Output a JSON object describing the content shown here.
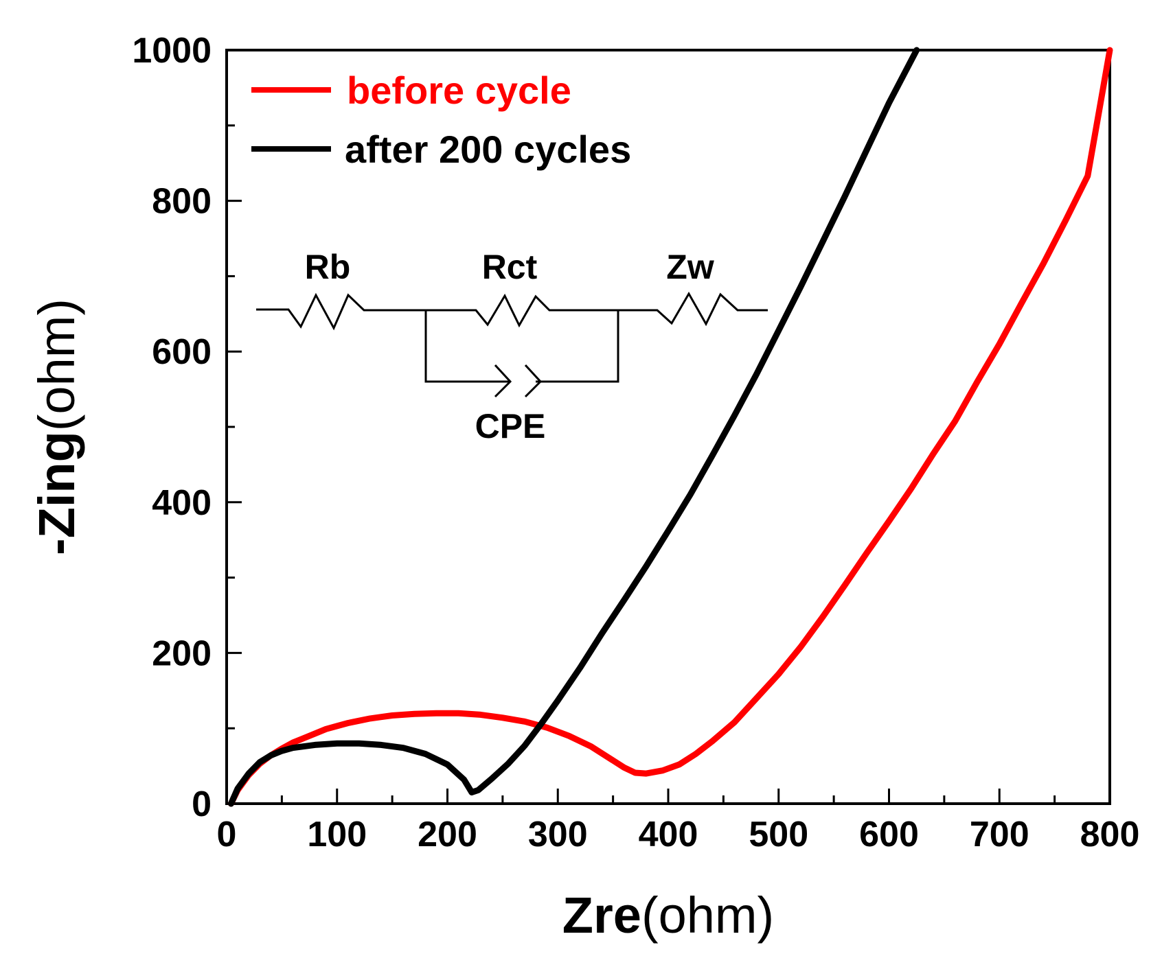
{
  "chart_data": {
    "type": "line",
    "x_axis": {
      "label_bold": "Zre",
      "label_unit": "(ohm)",
      "range": [
        0,
        800
      ],
      "ticks": [
        0,
        100,
        200,
        300,
        400,
        500,
        600,
        700,
        800
      ]
    },
    "y_axis": {
      "label_bold": "-Zing",
      "label_unit": "(ohm)",
      "range": [
        0,
        1000
      ],
      "ticks": [
        0,
        200,
        400,
        600,
        800,
        1000
      ]
    },
    "legend_position": "top-left",
    "series": [
      {
        "name": "before cycle",
        "color": "#ff0000",
        "points": [
          [
            4,
            0
          ],
          [
            10,
            18
          ],
          [
            20,
            38
          ],
          [
            30,
            53
          ],
          [
            40,
            64
          ],
          [
            50,
            73
          ],
          [
            60,
            81
          ],
          [
            70,
            87
          ],
          [
            80,
            93
          ],
          [
            90,
            99
          ],
          [
            100,
            103
          ],
          [
            110,
            107
          ],
          [
            120,
            110
          ],
          [
            130,
            113
          ],
          [
            140,
            115
          ],
          [
            150,
            117
          ],
          [
            170,
            119
          ],
          [
            190,
            120
          ],
          [
            210,
            120
          ],
          [
            230,
            118
          ],
          [
            250,
            114
          ],
          [
            270,
            109
          ],
          [
            290,
            101
          ],
          [
            310,
            90
          ],
          [
            330,
            76
          ],
          [
            345,
            62
          ],
          [
            360,
            48
          ],
          [
            370,
            41
          ],
          [
            380,
            40
          ],
          [
            395,
            44
          ],
          [
            410,
            52
          ],
          [
            425,
            66
          ],
          [
            440,
            83
          ],
          [
            460,
            108
          ],
          [
            480,
            140
          ],
          [
            500,
            172
          ],
          [
            520,
            208
          ],
          [
            540,
            248
          ],
          [
            560,
            290
          ],
          [
            580,
            333
          ],
          [
            600,
            375
          ],
          [
            620,
            418
          ],
          [
            640,
            464
          ],
          [
            660,
            508
          ],
          [
            680,
            560
          ],
          [
            700,
            610
          ],
          [
            720,
            664
          ],
          [
            740,
            717
          ],
          [
            760,
            774
          ],
          [
            780,
            833
          ],
          [
            800,
            1000
          ]
        ]
      },
      {
        "name": "after 200 cycles",
        "color": "#000000",
        "points": [
          [
            4,
            0
          ],
          [
            10,
            20
          ],
          [
            20,
            40
          ],
          [
            30,
            55
          ],
          [
            40,
            64
          ],
          [
            50,
            70
          ],
          [
            60,
            74
          ],
          [
            80,
            78
          ],
          [
            100,
            80
          ],
          [
            120,
            80
          ],
          [
            140,
            78
          ],
          [
            160,
            74
          ],
          [
            180,
            66
          ],
          [
            200,
            52
          ],
          [
            215,
            32
          ],
          [
            222,
            15
          ],
          [
            228,
            18
          ],
          [
            240,
            33
          ],
          [
            255,
            53
          ],
          [
            270,
            77
          ],
          [
            285,
            106
          ],
          [
            300,
            137
          ],
          [
            320,
            180
          ],
          [
            340,
            226
          ],
          [
            360,
            270
          ],
          [
            380,
            315
          ],
          [
            400,
            362
          ],
          [
            420,
            410
          ],
          [
            440,
            462
          ],
          [
            460,
            515
          ],
          [
            480,
            570
          ],
          [
            500,
            628
          ],
          [
            520,
            686
          ],
          [
            540,
            746
          ],
          [
            560,
            806
          ],
          [
            580,
            868
          ],
          [
            600,
            930
          ],
          [
            625,
            1000
          ]
        ]
      }
    ],
    "inset_circuit": {
      "labels": [
        "Rb",
        "Rct",
        "Zw",
        "CPE"
      ]
    }
  }
}
